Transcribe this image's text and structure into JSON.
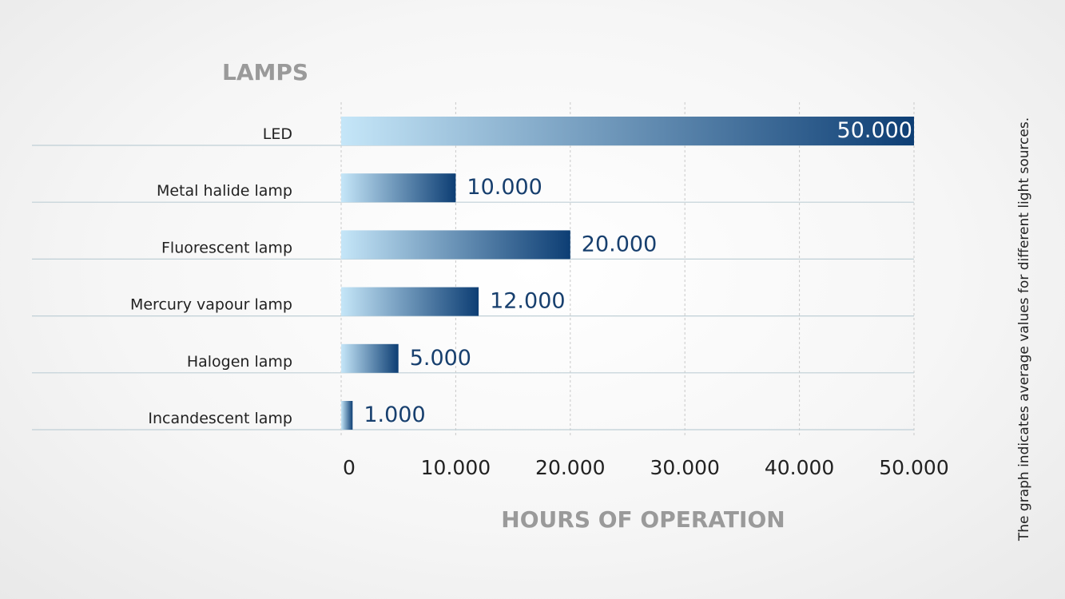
{
  "chart_data": {
    "type": "bar",
    "orientation": "horizontal",
    "ylabel": "LAMPS",
    "xlabel": "HOURS OF OPERATION",
    "categories": [
      "LED",
      "Metal halide lamp",
      "Fluorescent lamp",
      "Mercury vapour lamp",
      "Halogen lamp",
      "Incandescent lamp"
    ],
    "values": [
      50000,
      10000,
      20000,
      12000,
      5000,
      1000
    ],
    "value_labels": [
      "50.000",
      "10.000",
      "20.000",
      "12.000",
      "5.000",
      "1.000"
    ],
    "xlim": [
      0,
      50000
    ],
    "xticks": [
      0,
      10000,
      20000,
      30000,
      40000,
      50000
    ],
    "xtick_labels": [
      "0",
      "10.000",
      "20.000",
      "30.000",
      "40.000",
      "50.000"
    ],
    "grid": "vertical dashed",
    "bar_gradient": [
      "#c5e6f8",
      "#0d3e74"
    ],
    "colors": {
      "title": "#9a9a9a",
      "label": "#222222",
      "value": "#173f6e",
      "baseline": "#bfcfd6",
      "grid": "#c9c9c9"
    }
  },
  "side_note": "The graph indicates average values for different light sources."
}
